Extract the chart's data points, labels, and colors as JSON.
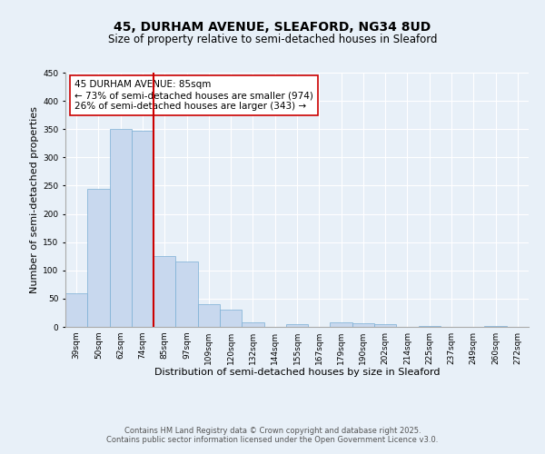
{
  "title": "45, DURHAM AVENUE, SLEAFORD, NG34 8UD",
  "subtitle": "Size of property relative to semi-detached houses in Sleaford",
  "xlabel": "Distribution of semi-detached houses by size in Sleaford",
  "ylabel": "Number of semi-detached properties",
  "bar_labels": [
    "39sqm",
    "50sqm",
    "62sqm",
    "74sqm",
    "85sqm",
    "97sqm",
    "109sqm",
    "120sqm",
    "132sqm",
    "144sqm",
    "155sqm",
    "167sqm",
    "179sqm",
    "190sqm",
    "202sqm",
    "214sqm",
    "225sqm",
    "237sqm",
    "249sqm",
    "260sqm",
    "272sqm"
  ],
  "bar_values": [
    60,
    245,
    350,
    347,
    125,
    115,
    40,
    30,
    8,
    0,
    5,
    0,
    8,
    7,
    5,
    0,
    2,
    0,
    0,
    2,
    0
  ],
  "bar_color": "#c8d8ee",
  "bar_edge_color": "#7bafd4",
  "red_line_x": 3.5,
  "marker_color": "#cc0000",
  "ylim": [
    0,
    450
  ],
  "yticks": [
    0,
    50,
    100,
    150,
    200,
    250,
    300,
    350,
    400,
    450
  ],
  "annotation_title": "45 DURHAM AVENUE: 85sqm",
  "annotation_line2": "← 73% of semi-detached houses are smaller (974)",
  "annotation_line3": "26% of semi-detached houses are larger (343) →",
  "footer_line1": "Contains HM Land Registry data © Crown copyright and database right 2025.",
  "footer_line2": "Contains public sector information licensed under the Open Government Licence v3.0.",
  "bg_color": "#e8f0f8",
  "plot_bg_color": "#e8f0f8",
  "grid_color": "#ffffff",
  "title_fontsize": 10,
  "subtitle_fontsize": 8.5,
  "axis_label_fontsize": 8,
  "tick_fontsize": 6.5,
  "annotation_fontsize": 7.5,
  "footer_fontsize": 6
}
